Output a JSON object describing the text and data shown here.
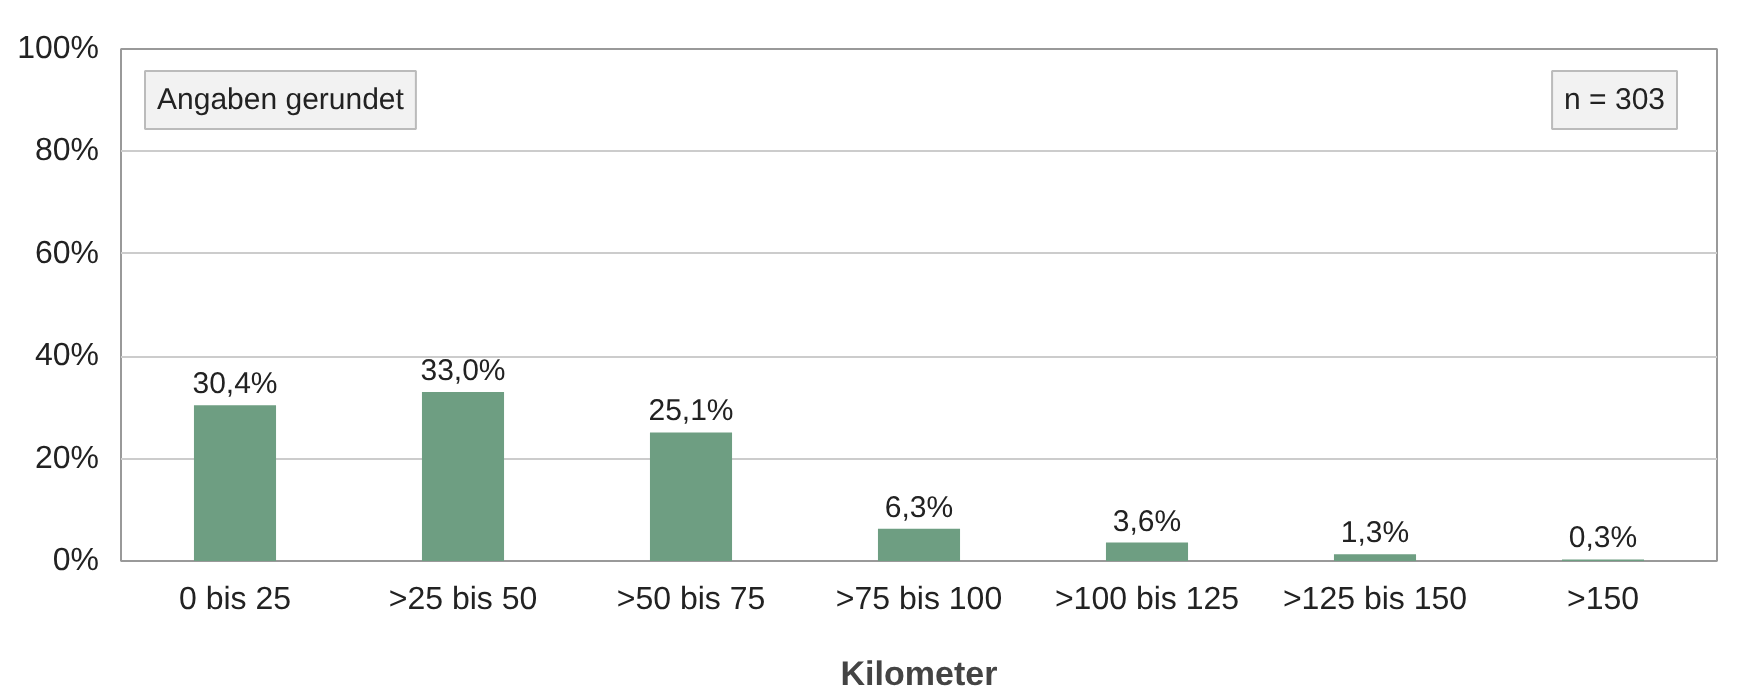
{
  "chart_data": {
    "type": "bar",
    "categories": [
      "0 bis 25",
      ">25 bis 50",
      ">50 bis 75",
      ">75 bis 100",
      ">100 bis 125",
      ">125 bis 150",
      ">150"
    ],
    "values": [
      30.4,
      33.0,
      25.1,
      6.3,
      3.6,
      1.3,
      0.3
    ],
    "value_labels": [
      "30,4%",
      "33,0%",
      "25,1%",
      "6,3%",
      "3,6%",
      "1,3%",
      "0,3%"
    ],
    "color": "#6e9e82",
    "xlabel": "Kilometer",
    "ylim": [
      0,
      100
    ],
    "yticks": [
      {
        "value": 0,
        "label": "0%"
      },
      {
        "value": 20,
        "label": "20%"
      },
      {
        "value": 40,
        "label": "40%"
      },
      {
        "value": 60,
        "label": "60%"
      },
      {
        "value": 80,
        "label": "80%"
      },
      {
        "value": 100,
        "label": "100%"
      }
    ],
    "grid": "y",
    "annotations": [
      "Angaben gerundet",
      "n = 303"
    ]
  }
}
